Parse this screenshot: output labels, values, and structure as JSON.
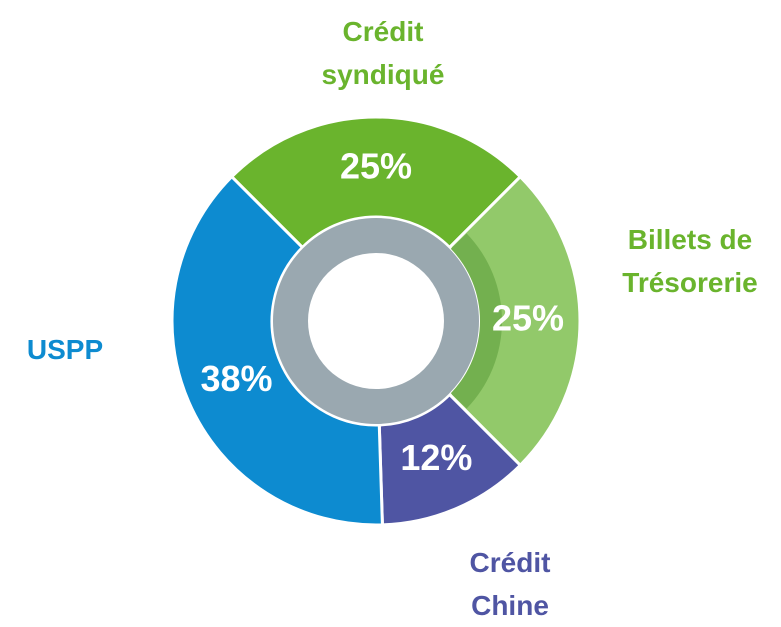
{
  "chart_data": {
    "type": "donut",
    "categories": [
      "Crédit syndiqué",
      "Billets de Trésorerie",
      "Crédit Chine",
      "USPP"
    ],
    "values": [
      25,
      25,
      12,
      38
    ],
    "value_labels": [
      "25%",
      "25%",
      "12%",
      "38%"
    ],
    "colors": [
      "#6ab42d",
      "#92c96a",
      "#4f55a3",
      "#0d8bd0"
    ],
    "label_colors": [
      "#6ab42d",
      "#6ab42d",
      "#4f55a3",
      "#0d8bd0"
    ]
  }
}
